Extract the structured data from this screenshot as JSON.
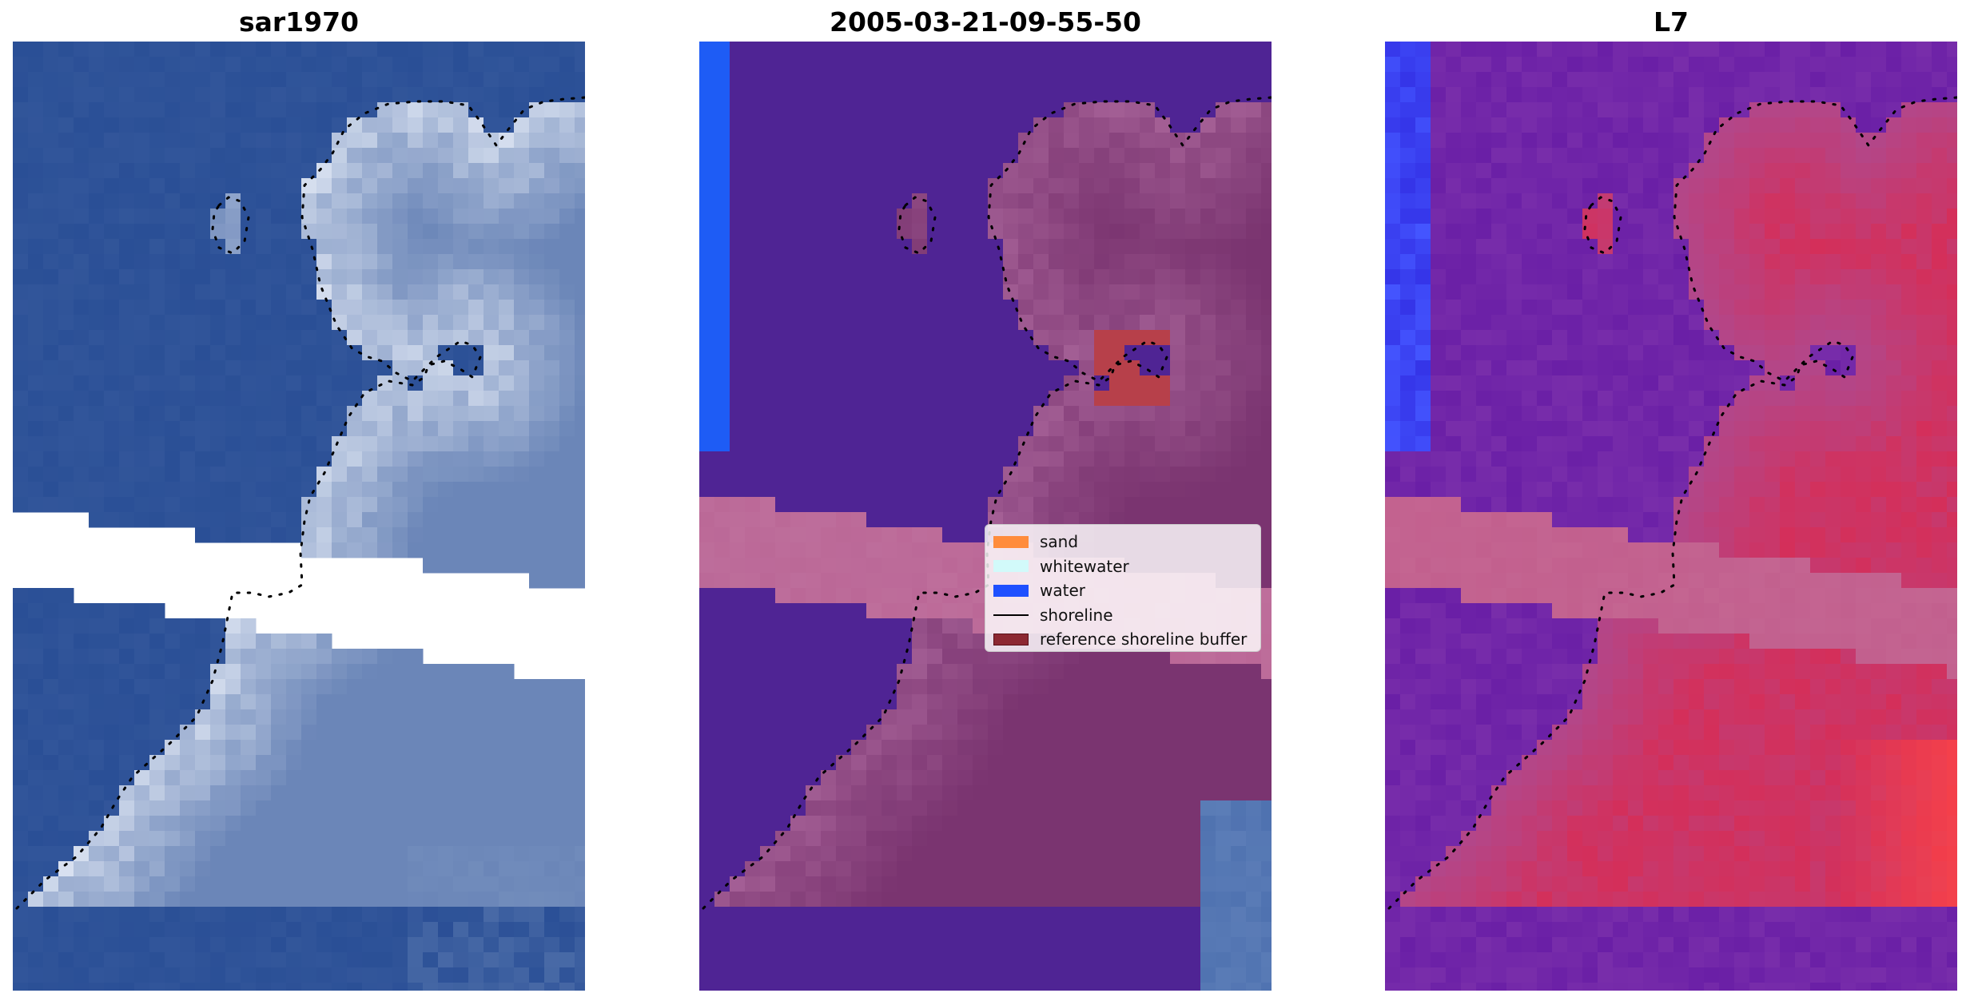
{
  "panels": [
    {
      "title": "sar1970"
    },
    {
      "title": "2005-03-21-09-55-50"
    },
    {
      "title": "L7"
    }
  ],
  "legend": {
    "items": [
      {
        "label": "sand",
        "color": "#ff8c3c",
        "kind": "patch"
      },
      {
        "label": "whitewater",
        "color": "#d2fafa",
        "kind": "patch"
      },
      {
        "label": "water",
        "color": "#1e50ff",
        "kind": "patch"
      },
      {
        "label": "shoreline",
        "color": "#000000",
        "kind": "line"
      },
      {
        "label": "reference shoreline buffer",
        "color": "#8c2832",
        "kind": "patch"
      }
    ]
  },
  "colors": {
    "rgb_water": "#2a4f96",
    "rgb_land": "#6b86b8",
    "rgb_bright": "#e8eef8",
    "class_water": "#4f2494",
    "class_land": "#7a3470",
    "class_edge_water": "#1e5cf5",
    "class_buffer": "#bb6897",
    "class_red": "#b7404a",
    "mndwi_blue": "#6a1fa6",
    "mndwi_red": "#d42f5a",
    "mndwi_edge": "#4455ff"
  }
}
